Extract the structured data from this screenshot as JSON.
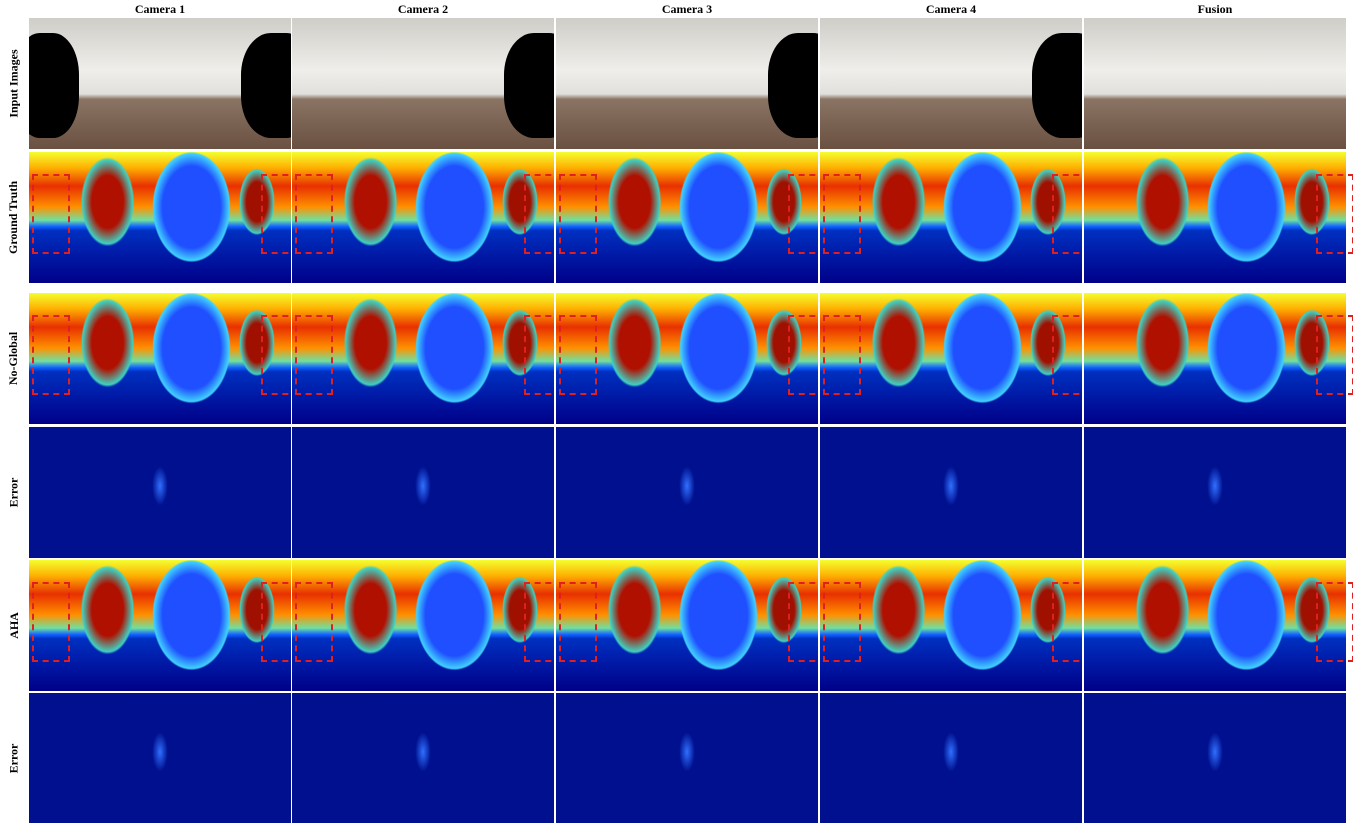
{
  "columns": [
    "Camera 1",
    "Camera 2",
    "Camera 3",
    "Camera 4",
    "Fusion"
  ],
  "rows": [
    "Input Images",
    "Ground Truth",
    "No-Global",
    "Error",
    "AHA",
    "Error"
  ]
}
